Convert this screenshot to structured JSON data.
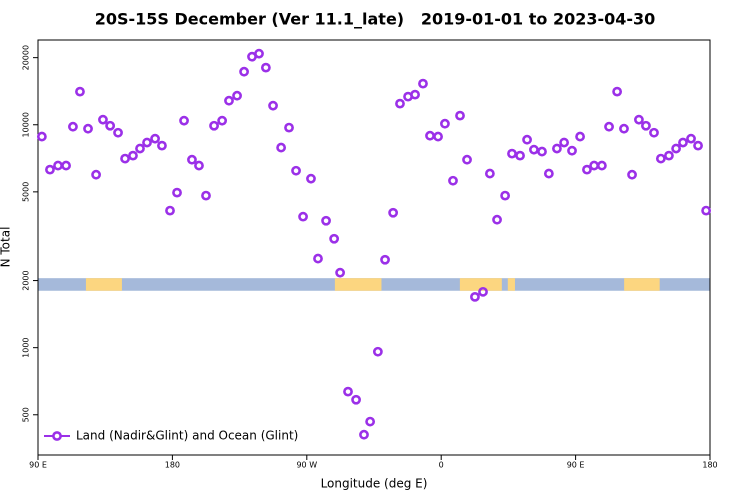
{
  "chart_data": {
    "type": "scatter",
    "title": "20S-15S December (Ver 11.1_late)   2019-01-01 to 2023-04-30",
    "x_label": "Longitude (deg E)",
    "y_label": "N Total",
    "log_y": true,
    "legend_position": "bottom-left",
    "xlim": [
      90,
      540
    ],
    "xticks": [
      {
        "value": 90,
        "label": "90 E"
      },
      180,
      {
        "value": 270,
        "label": "90 W"
      },
      {
        "value": 360,
        "label": "0"
      },
      {
        "value": 450,
        "label": "90 E"
      },
      {
        "value": 540,
        "label": "180"
      }
    ],
    "ylim": [
      330,
      24000
    ],
    "yticks": [
      500,
      1000,
      2000,
      5000,
      10000,
      20000
    ],
    "surface_strip": {
      "ylim": [
        1800,
        2050
      ],
      "color": "#a5b9da",
      "segments": [
        {
          "x": [
            122.1,
            146.2
          ],
          "color": "#fcd680"
        },
        {
          "x": [
            288.8,
            320
          ],
          "color": "#fcd680"
        },
        {
          "x": [
            372.5,
            400.6
          ],
          "color": "#fcd680"
        },
        {
          "x": [
            404.6,
            409.4
          ],
          "color": "#fcd680"
        },
        {
          "x": [
            482.5,
            506.3
          ],
          "color": "#fcd680"
        }
      ]
    },
    "x": [
      92.6,
      98,
      103.4,
      108.8,
      113.4,
      118.1,
      123.5,
      128.9,
      133.5,
      138.3,
      143.6,
      148.3,
      153.6,
      158.3,
      163,
      168.4,
      173,
      178.4,
      183.1,
      187.8,
      193.1,
      197.8,
      202.5,
      207.9,
      213.3,
      217.9,
      223.3,
      228,
      233.3,
      238,
      242.6,
      247.4,
      252.8,
      258.1,
      262.8,
      267.5,
      272.8,
      277.5,
      282.9,
      288.3,
      292.3,
      297.6,
      303,
      308.3,
      312.4,
      317.6,
      322.4,
      327.8,
      332.4,
      337.8,
      342.5,
      347.8,
      352.5,
      357.9,
      362.5,
      367.9,
      372.6,
      377.3,
      382.6,
      388,
      392.6,
      397.4,
      402.8,
      407.4,
      412.8,
      417.5,
      422.1,
      427.5,
      432.1,
      437.5,
      442.3,
      447.6,
      453,
      457.6,
      462.4,
      467.6,
      472.4,
      477.8,
      482.4,
      487.8,
      492.4,
      497.1,
      502.5,
      507.1,
      512.5,
      517.3,
      521.9,
      527.3,
      532,
      537.4
    ],
    "series": [
      {
        "name": "Land (Nadir&Glint) and Ocean (Glint)",
        "color": "#9b30e8",
        "values": [
          8850,
          6290,
          6560,
          6560,
          9800,
          14080,
          9600,
          5970,
          10540,
          9900,
          9210,
          7050,
          7270,
          7820,
          8320,
          8660,
          8060,
          4120,
          4960,
          10430,
          6970,
          6560,
          4810,
          9900,
          10430,
          12820,
          13500,
          17300,
          20200,
          20840,
          18040,
          12180,
          7900,
          9710,
          6220,
          3870,
          5730,
          2510,
          3710,
          3080,
          2170,
          635,
          584,
          407,
          466,
          959,
          2480,
          4030,
          12440,
          13370,
          13650,
          15290,
          8930,
          8850,
          10110,
          5610,
          10990,
          6970,
          1690,
          1780,
          6040,
          3750,
          4810,
          7420,
          7270,
          8570,
          7730,
          7580,
          6040,
          7820,
          8320,
          7650,
          8850,
          6290,
          6560,
          6560,
          9800,
          14080,
          9600,
          5970,
          10540,
          9900,
          9210,
          7050,
          7270,
          7820,
          8320,
          8660,
          8060,
          4120
        ]
      }
    ]
  }
}
